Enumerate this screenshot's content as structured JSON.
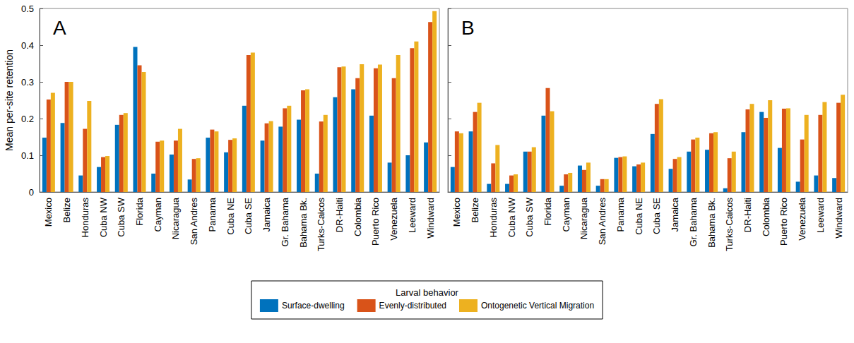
{
  "chart_data": [
    {
      "type": "bar",
      "title": "A",
      "ylabel": "Mean per-site retention",
      "categories": [
        "Mexico",
        "Belize",
        "Honduras",
        "Cuba NW",
        "Cuba SW",
        "Florida",
        "Cayman",
        "Nicaragua",
        "San Andres",
        "Panama",
        "Cuba NE",
        "Cuba SE",
        "Jamaica",
        "Gr. Bahama",
        "Bahama Bk.",
        "Turks-Caicos",
        "DR-Haiti",
        "Colombia",
        "Puerto Rico",
        "Venezuela",
        "Leeward",
        "Windward"
      ],
      "series": [
        {
          "name": "Surface-dwelling",
          "color": "#0072bd",
          "values": [
            0.148,
            0.188,
            0.045,
            0.068,
            0.183,
            0.395,
            0.05,
            0.102,
            0.034,
            0.148,
            0.108,
            0.235,
            0.14,
            0.178,
            0.197,
            0.05,
            0.258,
            0.28,
            0.208,
            0.08,
            0.1,
            0.135
          ]
        },
        {
          "name": "Evenly-distributed",
          "color": "#d95319",
          "values": [
            0.252,
            0.3,
            0.172,
            0.095,
            0.21,
            0.345,
            0.137,
            0.14,
            0.09,
            0.17,
            0.142,
            0.373,
            0.187,
            0.228,
            0.277,
            0.192,
            0.34,
            0.31,
            0.337,
            0.31,
            0.392,
            0.463
          ]
        },
        {
          "name": "Ontogenetic Vertical Migration",
          "color": "#edb120",
          "values": [
            0.27,
            0.3,
            0.248,
            0.098,
            0.215,
            0.327,
            0.14,
            0.172,
            0.092,
            0.165,
            0.146,
            0.38,
            0.193,
            0.235,
            0.28,
            0.21,
            0.342,
            0.348,
            0.347,
            0.373,
            0.41,
            0.493
          ]
        }
      ],
      "ylim": [
        0,
        0.5
      ],
      "yticks": [
        0,
        0.1,
        0.2,
        0.3,
        0.4,
        0.5
      ],
      "grid": false,
      "legend": "bottom",
      "legend_title": "Larval behavior"
    },
    {
      "type": "bar",
      "title": "B",
      "categories": [
        "Mexico",
        "Belize",
        "Honduras",
        "Cuba NW",
        "Cuba SW",
        "Florida",
        "Cayman",
        "Nicaragua",
        "San Andres",
        "Panama",
        "Cuba NE",
        "Cuba SE",
        "Jamaica",
        "Gr. Bahama",
        "Bahama Bk.",
        "Turks-Caicos",
        "DR-Haiti",
        "Colombia",
        "Puerto Rico",
        "Venezuela",
        "Leeward",
        "Windward"
      ],
      "series": [
        {
          "name": "Surface-dwelling",
          "color": "#0072bd",
          "values": [
            0.068,
            0.165,
            0.022,
            0.022,
            0.11,
            0.208,
            0.017,
            0.072,
            0.017,
            0.093,
            0.07,
            0.158,
            0.063,
            0.11,
            0.115,
            0.01,
            0.163,
            0.218,
            0.12,
            0.028,
            0.045,
            0.038
          ]
        },
        {
          "name": "Evenly-distributed",
          "color": "#d95319",
          "values": [
            0.165,
            0.218,
            0.078,
            0.045,
            0.11,
            0.283,
            0.048,
            0.06,
            0.035,
            0.095,
            0.075,
            0.24,
            0.09,
            0.143,
            0.16,
            0.092,
            0.225,
            0.202,
            0.227,
            0.143,
            0.21,
            0.243
          ]
        },
        {
          "name": "Ontogenetic Vertical Migration",
          "color": "#edb120",
          "values": [
            0.16,
            0.243,
            0.128,
            0.048,
            0.122,
            0.22,
            0.052,
            0.08,
            0.035,
            0.097,
            0.08,
            0.253,
            0.095,
            0.148,
            0.163,
            0.11,
            0.24,
            0.25,
            0.228,
            0.21,
            0.245,
            0.265
          ]
        }
      ],
      "ylim": [
        0,
        0.5
      ],
      "yticks": [
        0,
        0.1,
        0.2,
        0.3,
        0.4,
        0.5
      ],
      "grid": false,
      "tick_labels": "x"
    }
  ]
}
